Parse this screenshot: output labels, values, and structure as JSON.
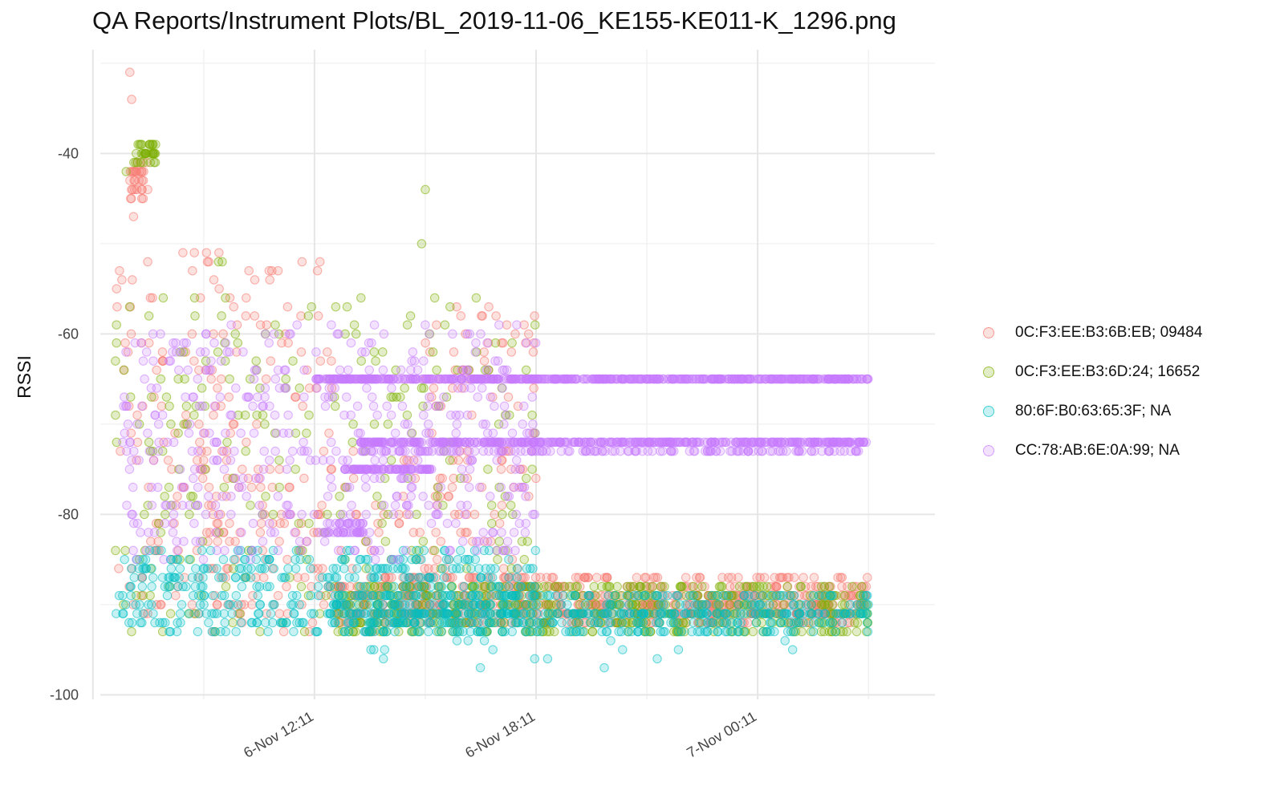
{
  "chart_data": {
    "type": "scatter",
    "title": "QA Reports/Instrument Plots/BL_2019-11-06_KE155-KE011-K_1296.png",
    "xlabel": "",
    "ylabel": "RSSI",
    "x_ticks": [
      "6-Nov 12:11",
      "6-Nov 18:11",
      "7-Nov 00:11"
    ],
    "x_range_hours_from_first_tick": [
      -5.8,
      16.8
    ],
    "x_data_range_hours_from_first_tick": [
      -5.4,
      15.0
    ],
    "y_ticks": [
      -100,
      -80,
      -60,
      -40
    ],
    "ylim": [
      -100.5,
      -28.5
    ],
    "grid": true,
    "legend_position": "right",
    "series": [
      {
        "name": "0C:F3:EE:B3:6B:EB; 09484",
        "color": "#F8766D",
        "summary": "Initial cluster near -42 to -45 at start; scattered -50 to -92 during 6-Nov daytime; after about 6-Nov 18:30 a dense band at about -88 to -92 through 7-Nov."
      },
      {
        "name": "0C:F3:EE:B3:6D:24; 16652",
        "color": "#7CAE00",
        "summary": "Starts near -40 to -41 (peak cluster); scattered -44 to -93 during 6-Nov daytime; later band around -89 to -92."
      },
      {
        "name": "80:6F:B0:63:65:3F; NA",
        "color": "#00BFC4",
        "summary": "Mostly -84 to -93 throughout; occasional readings down to about -97."
      },
      {
        "name": "CC:78:AB:6E:0A:99; NA",
        "color": "#C77CFF",
        "summary": "Scattered -59 to -85 during 6-Nov daytime; after about 6-Nov 18:11 steady bands at -65, -72 and -75 continuing into 7-Nov."
      }
    ]
  }
}
